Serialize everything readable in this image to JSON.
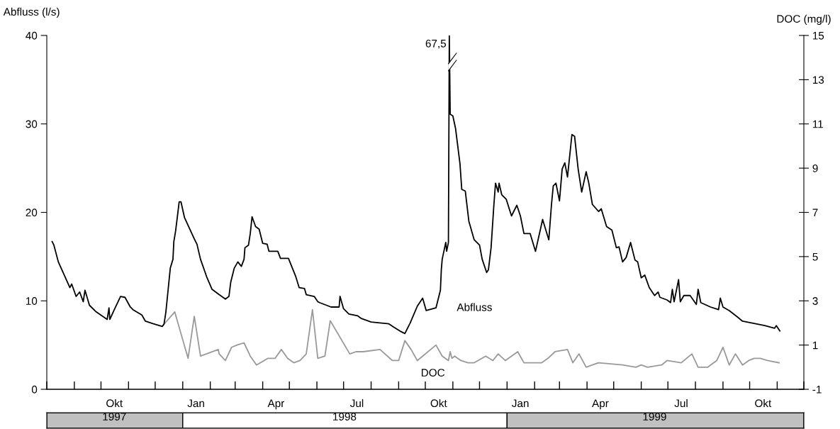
{
  "chart_data": {
    "type": "line",
    "ylabel": "Abfluss (l/s)",
    "y2label": "DOC (mg/l)",
    "xlim": [
      "1997-08-01",
      "1999-12-01"
    ],
    "xticks": [
      {
        "value": "1997-08-01",
        "label": null
      },
      {
        "value": "1997-09-01",
        "label": null
      },
      {
        "value": "1997-10-01",
        "label": null
      },
      {
        "value": "1997-11-01",
        "label": null
      },
      {
        "value": "1997-12-01",
        "label": null
      },
      {
        "value": "1998-01-01",
        "label": null
      },
      {
        "value": "1998-02-01",
        "label": null
      },
      {
        "value": "1998-03-01",
        "label": null
      },
      {
        "value": "1998-04-01",
        "label": null
      },
      {
        "value": "1998-05-01",
        "label": null
      },
      {
        "value": "1998-06-01",
        "label": null
      },
      {
        "value": "1998-07-01",
        "label": null
      },
      {
        "value": "1998-08-01",
        "label": null
      },
      {
        "value": "1998-09-01",
        "label": null
      },
      {
        "value": "1998-10-01",
        "label": null
      },
      {
        "value": "1998-11-01",
        "label": null
      },
      {
        "value": "1998-12-01",
        "label": null
      },
      {
        "value": "1999-01-01",
        "label": null
      },
      {
        "value": "1999-02-01",
        "label": null
      },
      {
        "value": "1999-03-01",
        "label": null
      },
      {
        "value": "1999-04-01",
        "label": null
      },
      {
        "value": "1999-05-01",
        "label": null
      },
      {
        "value": "1999-06-01",
        "label": null
      },
      {
        "value": "1999-07-01",
        "label": null
      },
      {
        "value": "1999-08-01",
        "label": null
      },
      {
        "value": "1999-09-01",
        "label": null
      },
      {
        "value": "1999-10-01",
        "label": null
      },
      {
        "value": "1999-11-01",
        "label": null
      },
      {
        "value": "1999-12-01",
        "label": null
      },
      {
        "value": "1997-10-16",
        "label": "Okt"
      },
      {
        "value": "1998-01-16",
        "label": "Jan"
      },
      {
        "value": "1998-04-16",
        "label": "Apr"
      },
      {
        "value": "1998-07-16",
        "label": "Jul"
      },
      {
        "value": "1998-10-16",
        "label": "Okt"
      },
      {
        "value": "1999-01-16",
        "label": "Jan"
      },
      {
        "value": "1999-04-16",
        "label": "Apr"
      },
      {
        "value": "1999-07-16",
        "label": "Jul"
      },
      {
        "value": "1999-10-16",
        "label": "Okt"
      }
    ],
    "ylim": [
      0,
      40
    ],
    "yticks": [
      0,
      10,
      20,
      30,
      40
    ],
    "y2lim": [
      -1,
      15
    ],
    "y2ticks": [
      -1,
      1,
      3,
      5,
      7,
      9,
      11,
      13,
      15
    ],
    "grid": false,
    "legend": false,
    "annotations": [
      {
        "text": "67,5",
        "x": "1998-10-28",
        "y": 40
      }
    ],
    "x2lim": [
      "1997-08-01",
      "1999-12-01"
    ],
    "x2ticks": [
      {
        "value": "1997-08-01",
        "label": null
      },
      {
        "value": "1998-01-01",
        "label": null
      },
      {
        "value": "1999-01-01",
        "label": null
      },
      {
        "value": "1999-12-01",
        "label": null
      },
      {
        "value": "1997-10-16",
        "label": "1997"
      },
      {
        "value": "1998-07-02",
        "label": "1998"
      },
      {
        "value": "1999-06-16",
        "label": "1999"
      }
    ],
    "series": [
      {
        "name": "Abfluss",
        "color": "#000000",
        "x": [
          "1997-08-07",
          "1997-08-09",
          "1997-08-14",
          "1997-08-27",
          "1997-08-29",
          "1997-09-03",
          "1997-09-07",
          "1997-09-11",
          "1997-09-13",
          "1997-09-18",
          "1997-09-25",
          "1997-10-08",
          "1997-10-10",
          "1997-10-11",
          "1997-10-16",
          "1997-10-23",
          "1997-10-28",
          "1997-11-03",
          "1997-11-06",
          "1997-11-16",
          "1997-11-20",
          "1997-11-29",
          "1997-12-09",
          "1997-12-11",
          "1997-12-13",
          "1997-12-18",
          "1997-12-21",
          "1997-12-22",
          "1997-12-24",
          "1997-12-28",
          "1997-12-30",
          "1998-01-03",
          "1998-01-14",
          "1998-01-17",
          "1998-01-21",
          "1998-01-28",
          "1998-02-03",
          "1998-02-11",
          "1998-02-18",
          "1998-02-22",
          "1998-02-24",
          "1998-02-28",
          "1998-03-04",
          "1998-03-08",
          "1998-03-11",
          "1998-03-12",
          "1998-03-16",
          "1998-03-18",
          "1998-03-20",
          "1998-03-24",
          "1998-03-28",
          "1998-04-01",
          "1998-04-06",
          "1998-04-08",
          "1998-04-18",
          "1998-04-21",
          "1998-04-30",
          "1998-05-08",
          "1998-05-12",
          "1998-05-18",
          "1998-05-20",
          "1998-05-29",
          "1998-06-02",
          "1998-06-04",
          "1998-06-17",
          "1998-06-26",
          "1998-06-27",
          "1998-07-01",
          "1998-07-07",
          "1998-07-17",
          "1998-07-21",
          "1998-08-01",
          "1998-08-21",
          "1998-08-27",
          "1998-09-04",
          "1998-09-08",
          "1998-09-14",
          "1998-09-22",
          "1998-09-28",
          "1998-10-02",
          "1998-10-13",
          "1998-10-18",
          "1998-10-19",
          "1998-10-20",
          "1998-10-24",
          "1998-10-25",
          "1998-10-27",
          "1998-10-28",
          "1998-10-29",
          "1998-11-01",
          "1998-11-04",
          "1998-11-09",
          "1998-11-11",
          "1998-11-15",
          "1998-11-19",
          "1998-11-25",
          "1998-12-01",
          "1998-12-04",
          "1998-12-09",
          "1998-12-11",
          "1998-12-14",
          "1998-12-17",
          "1998-12-19",
          "1998-12-22",
          "1998-12-23",
          "1998-12-26",
          "1998-12-31",
          "1999-01-06",
          "1999-01-12",
          "1999-01-16",
          "1999-01-20",
          "1999-01-27",
          "1999-02-02",
          "1999-02-10",
          "1999-02-17",
          "1999-02-20",
          "1999-02-22",
          "1999-02-25",
          "1999-03-01",
          "1999-03-04",
          "1999-03-07",
          "1999-03-10",
          "1999-03-15",
          "1999-03-18",
          "1999-03-22",
          "1999-03-26",
          "1999-03-31",
          "1999-04-03",
          "1999-04-07",
          "1999-04-14",
          "1999-04-17",
          "1999-04-23",
          "1999-04-29",
          "1999-05-04",
          "1999-05-07",
          "1999-05-11",
          "1999-05-15",
          "1999-05-20",
          "1999-05-25",
          "1999-05-28",
          "1999-06-01",
          "1999-06-05",
          "1999-06-10",
          "1999-06-16",
          "1999-06-20",
          "1999-06-22",
          "1999-06-30",
          "1999-07-04",
          "1999-07-06",
          "1999-07-08",
          "1999-07-13",
          "1999-07-15",
          "1999-07-19",
          "1999-07-26",
          "1999-08-02",
          "1999-08-04",
          "1999-08-07",
          "1999-08-18",
          "1999-08-27",
          "1999-08-29",
          "1999-09-01",
          "1999-09-08",
          "1999-09-17",
          "1999-09-23",
          "1999-10-03",
          "1999-10-18",
          "1999-10-29",
          "1999-10-31",
          "1999-11-04"
        ],
        "values": [
          16.7,
          16.3,
          14.4,
          11.5,
          11.9,
          10.5,
          11.0,
          9.9,
          11.2,
          9.5,
          8.8,
          7.9,
          9.2,
          7.9,
          9.0,
          10.5,
          10.4,
          9.3,
          9.0,
          8.4,
          7.7,
          7.4,
          7.1,
          7.4,
          8.7,
          13.7,
          14.7,
          16.7,
          17.9,
          21.2,
          21.2,
          19.4,
          17.0,
          16.4,
          14.7,
          12.7,
          11.3,
          10.7,
          10.2,
          10.5,
          12.1,
          13.7,
          14.4,
          13.9,
          14.7,
          16.0,
          16.3,
          17.6,
          19.5,
          18.4,
          18.1,
          16.5,
          16.4,
          15.6,
          15.6,
          14.8,
          14.8,
          12.8,
          11.5,
          11.4,
          10.7,
          10.5,
          9.9,
          9.8,
          9.3,
          9.3,
          10.5,
          9.1,
          8.5,
          8.3,
          8.0,
          7.6,
          7.4,
          7.0,
          6.5,
          6.3,
          7.5,
          9.4,
          10.3,
          8.9,
          9.2,
          11.2,
          13.5,
          14.7,
          16.6,
          15.6,
          16.6,
          40,
          31.1,
          30.9,
          29.5,
          25.5,
          22.6,
          22.4,
          19.0,
          16.9,
          16.3,
          14.7,
          13.2,
          13.5,
          16.0,
          20.6,
          23.3,
          22.3,
          23.3,
          22.0,
          21.5,
          19.6,
          20.8,
          19.6,
          17.6,
          17.6,
          15.6,
          19.2,
          16.9,
          20.9,
          23.0,
          23.3,
          21.3,
          24.9,
          25.6,
          24.0,
          28.8,
          28.6,
          24.9,
          22.3,
          24.6,
          23.3,
          20.9,
          20.1,
          20.4,
          18.4,
          18.0,
          16.0,
          16.1,
          14.4,
          14.9,
          16.6,
          14.6,
          14.4,
          12.6,
          12.9,
          11.5,
          10.6,
          11.0,
          10.4,
          10.1,
          9.8,
          11.3,
          9.9,
          12.4,
          9.9,
          10.6,
          10.6,
          9.6,
          11.3,
          9.8,
          9.3,
          9.0,
          10.3,
          9.3,
          8.9,
          8.2,
          7.7,
          7.5,
          7.2,
          6.9,
          7.2,
          6.6
        ]
      },
      {
        "name": "DOC",
        "color": "#999999",
        "axis": "y2",
        "x": [
          "1997-12-10",
          "1997-12-23",
          "1998-01-07",
          "1998-01-14",
          "1998-01-21",
          "1998-02-10",
          "1998-02-11",
          "1998-02-18",
          "1998-02-25",
          "1998-03-03",
          "1998-03-11",
          "1998-03-18",
          "1998-03-25",
          "1998-04-07",
          "1998-04-15",
          "1998-04-22",
          "1998-04-29",
          "1998-05-06",
          "1998-05-13",
          "1998-05-20",
          "1998-05-27",
          "1998-06-02",
          "1998-06-10",
          "1998-06-16",
          "1998-07-08",
          "1998-07-15",
          "1998-07-23",
          "1998-08-11",
          "1998-08-25",
          "1998-09-01",
          "1998-09-08",
          "1998-09-15",
          "1998-09-22",
          "1998-10-13",
          "1998-10-20",
          "1998-10-27",
          "1998-10-29",
          "1998-10-31",
          "1998-11-03",
          "1998-11-10",
          "1998-11-18",
          "1998-11-25",
          "1998-12-08",
          "1998-12-16",
          "1998-12-22",
          "1998-12-30",
          "1999-01-13",
          "1999-01-20",
          "1999-02-02",
          "1999-02-09",
          "1999-02-16",
          "1999-02-24",
          "1999-03-10",
          "1999-03-16",
          "1999-03-23",
          "1999-03-31",
          "1999-04-07",
          "1999-04-14",
          "1999-05-11",
          "1999-05-26",
          "1999-06-01",
          "1999-06-08",
          "1999-06-24",
          "1999-06-30",
          "1999-07-16",
          "1999-07-28",
          "1999-08-04",
          "1999-08-15",
          "1999-08-18",
          "1999-08-25",
          "1999-09-01",
          "1999-09-08",
          "1999-09-15",
          "1999-09-23",
          "1999-09-30",
          "1999-10-06",
          "1999-10-13",
          "1999-10-21",
          "1999-11-03"
        ],
        "values": [
          1.9,
          2.5,
          0.4,
          2.3,
          0.5,
          0.8,
          0.6,
          0.3,
          0.9,
          1.0,
          1.1,
          0.5,
          0.1,
          0.4,
          0.4,
          0.8,
          0.4,
          0.2,
          0.3,
          0.6,
          2.6,
          0.4,
          0.5,
          2.1,
          0.6,
          0.7,
          0.7,
          0.8,
          0.3,
          0.3,
          1.2,
          0.8,
          0.3,
          1.0,
          0.5,
          0.3,
          0.7,
          0.4,
          0.5,
          0.3,
          0.2,
          0.2,
          0.5,
          0.3,
          0.6,
          0.3,
          0.7,
          0.2,
          0.2,
          0.2,
          0.4,
          0.7,
          0.8,
          0.2,
          0.6,
          0.0,
          0.1,
          0.2,
          0.1,
          0.0,
          0.1,
          0.0,
          0.1,
          0.3,
          0.2,
          0.6,
          0.0,
          0.0,
          0.1,
          0.3,
          0.9,
          0.1,
          0.6,
          0.1,
          0.3,
          0.4,
          0.4,
          0.3,
          0.2
        ]
      }
    ]
  }
}
